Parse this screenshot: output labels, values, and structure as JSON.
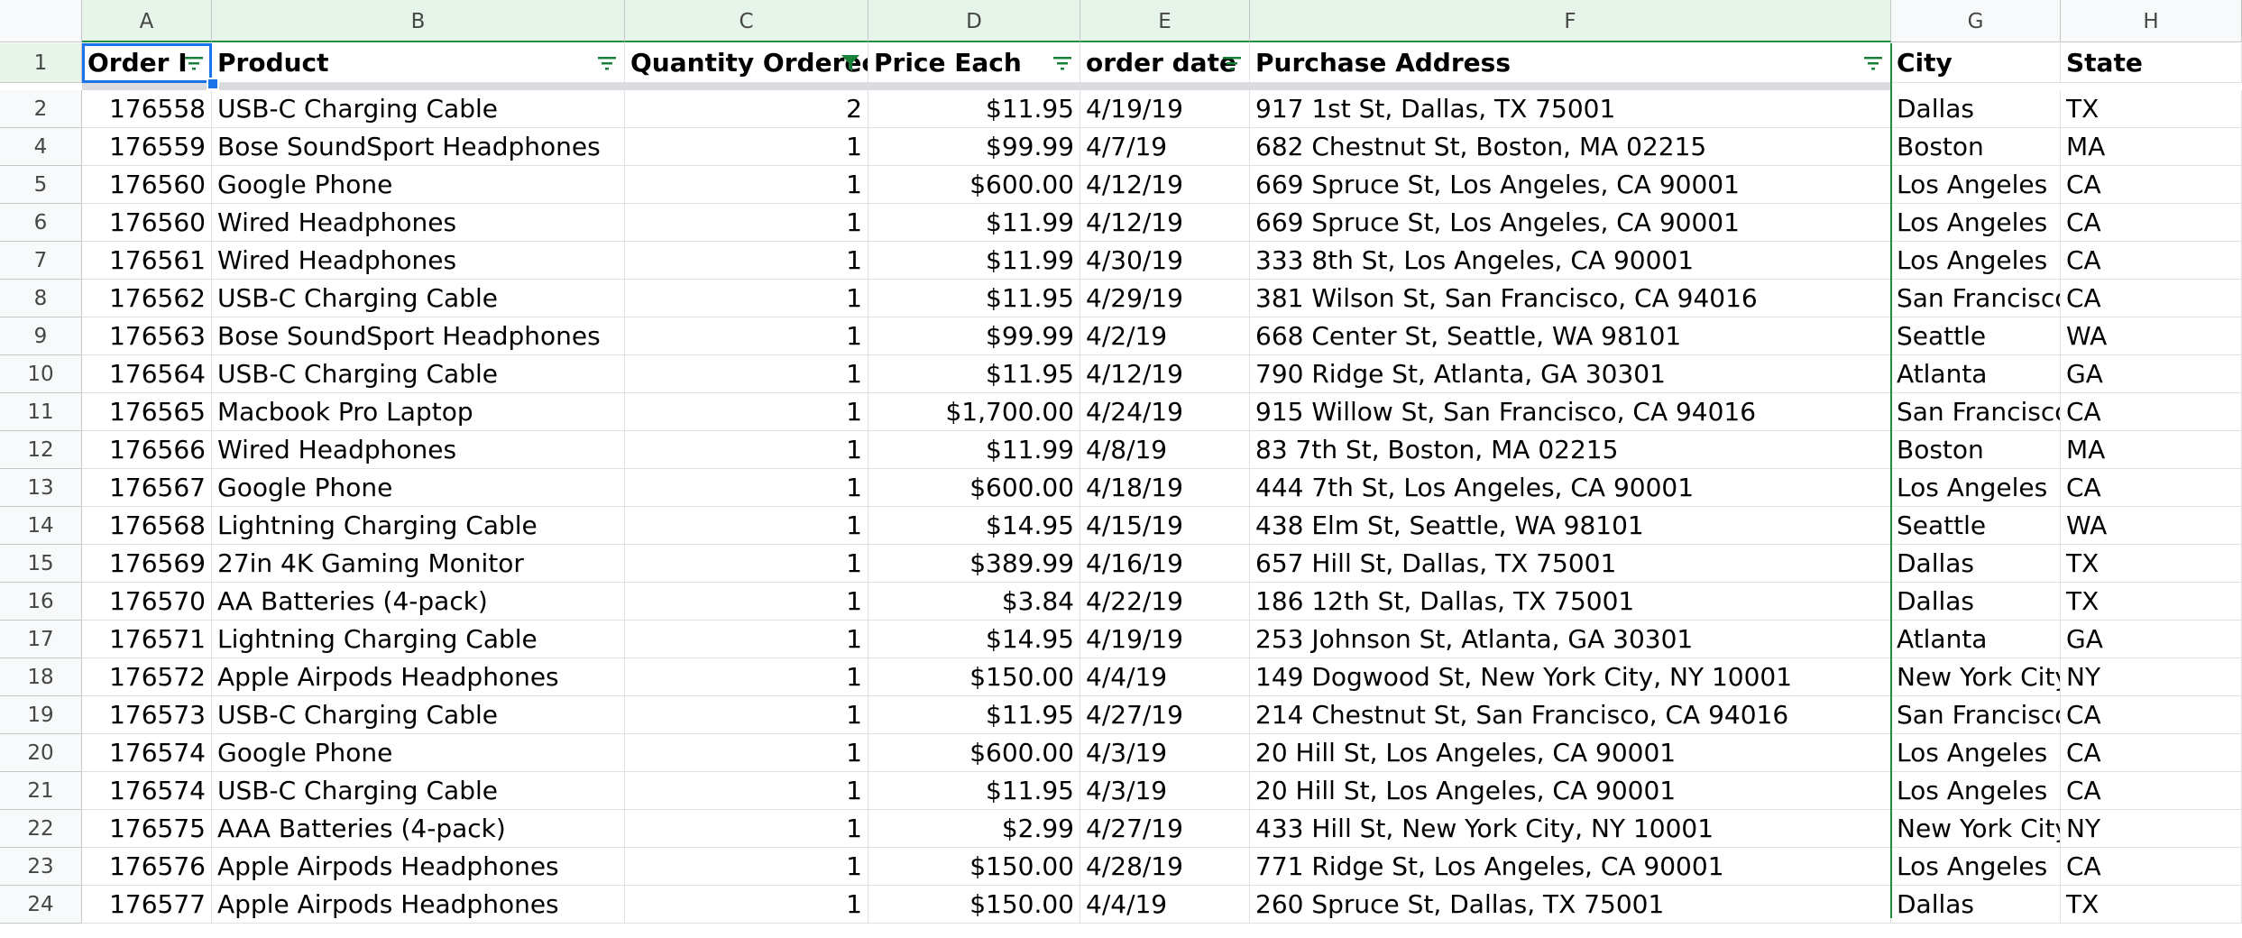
{
  "columns": [
    {
      "letter": "A",
      "filtered": true
    },
    {
      "letter": "B",
      "filtered": true
    },
    {
      "letter": "C",
      "filtered": true
    },
    {
      "letter": "D",
      "filtered": true
    },
    {
      "letter": "E",
      "filtered": true
    },
    {
      "letter": "F",
      "filtered": true
    },
    {
      "letter": "G",
      "filtered": false
    },
    {
      "letter": "H",
      "filtered": false
    }
  ],
  "header_row": {
    "row_number": "1",
    "cells": [
      "Order I",
      "Product",
      "Quantity Orderec",
      "Price Each",
      "order date",
      "Purchase Address",
      "City",
      "State"
    ],
    "filter_active": [
      false,
      false,
      true,
      false,
      false,
      false,
      false,
      false
    ]
  },
  "rows": [
    {
      "n": "2",
      "cells": [
        "176558",
        "USB-C Charging Cable",
        "2",
        "$11.95",
        "4/19/19",
        "917 1st St, Dallas, TX 75001",
        "Dallas",
        "TX"
      ]
    },
    {
      "n": "4",
      "cells": [
        "176559",
        "Bose SoundSport Headphones",
        "1",
        "$99.99",
        "4/7/19",
        "682 Chestnut St, Boston, MA 02215",
        "Boston",
        "MA"
      ]
    },
    {
      "n": "5",
      "cells": [
        "176560",
        "Google Phone",
        "1",
        "$600.00",
        "4/12/19",
        "669 Spruce St, Los Angeles, CA 90001",
        "Los Angeles",
        "CA"
      ]
    },
    {
      "n": "6",
      "cells": [
        "176560",
        "Wired Headphones",
        "1",
        "$11.99",
        "4/12/19",
        "669 Spruce St, Los Angeles, CA 90001",
        "Los Angeles",
        "CA"
      ]
    },
    {
      "n": "7",
      "cells": [
        "176561",
        "Wired Headphones",
        "1",
        "$11.99",
        "4/30/19",
        "333 8th St, Los Angeles, CA 90001",
        "Los Angeles",
        "CA"
      ]
    },
    {
      "n": "8",
      "cells": [
        "176562",
        "USB-C Charging Cable",
        "1",
        "$11.95",
        "4/29/19",
        "381 Wilson St, San Francisco, CA 94016",
        "San Francisco",
        "CA"
      ]
    },
    {
      "n": "9",
      "cells": [
        "176563",
        "Bose SoundSport Headphones",
        "1",
        "$99.99",
        "4/2/19",
        "668 Center St, Seattle, WA 98101",
        "Seattle",
        "WA"
      ]
    },
    {
      "n": "10",
      "cells": [
        "176564",
        "USB-C Charging Cable",
        "1",
        "$11.95",
        "4/12/19",
        "790 Ridge St, Atlanta, GA 30301",
        "Atlanta",
        "GA"
      ]
    },
    {
      "n": "11",
      "cells": [
        "176565",
        "Macbook Pro Laptop",
        "1",
        "$1,700.00",
        "4/24/19",
        "915 Willow St, San Francisco, CA 94016",
        "San Francisco",
        "CA"
      ]
    },
    {
      "n": "12",
      "cells": [
        "176566",
        "Wired Headphones",
        "1",
        "$11.99",
        "4/8/19",
        "83 7th St, Boston, MA 02215",
        "Boston",
        "MA"
      ]
    },
    {
      "n": "13",
      "cells": [
        "176567",
        "Google Phone",
        "1",
        "$600.00",
        "4/18/19",
        "444 7th St, Los Angeles, CA 90001",
        "Los Angeles",
        "CA"
      ]
    },
    {
      "n": "14",
      "cells": [
        "176568",
        "Lightning Charging Cable",
        "1",
        "$14.95",
        "4/15/19",
        "438 Elm St, Seattle, WA 98101",
        "Seattle",
        "WA"
      ]
    },
    {
      "n": "15",
      "cells": [
        "176569",
        "27in 4K Gaming Monitor",
        "1",
        "$389.99",
        "4/16/19",
        "657 Hill St, Dallas, TX 75001",
        "Dallas",
        "TX"
      ]
    },
    {
      "n": "16",
      "cells": [
        "176570",
        "AA Batteries (4-pack)",
        "1",
        "$3.84",
        "4/22/19",
        "186 12th St, Dallas, TX 75001",
        "Dallas",
        "TX"
      ]
    },
    {
      "n": "17",
      "cells": [
        "176571",
        "Lightning Charging Cable",
        "1",
        "$14.95",
        "4/19/19",
        "253 Johnson St, Atlanta, GA 30301",
        "Atlanta",
        "GA"
      ]
    },
    {
      "n": "18",
      "cells": [
        "176572",
        "Apple Airpods Headphones",
        "1",
        "$150.00",
        "4/4/19",
        "149 Dogwood St, New York City, NY 10001",
        "New York City",
        "NY"
      ]
    },
    {
      "n": "19",
      "cells": [
        "176573",
        "USB-C Charging Cable",
        "1",
        "$11.95",
        "4/27/19",
        "214 Chestnut St, San Francisco, CA 94016",
        "San Francisco",
        "CA"
      ]
    },
    {
      "n": "20",
      "cells": [
        "176574",
        "Google Phone",
        "1",
        "$600.00",
        "4/3/19",
        "20 Hill St, Los Angeles, CA 90001",
        "Los Angeles",
        "CA"
      ]
    },
    {
      "n": "21",
      "cells": [
        "176574",
        "USB-C Charging Cable",
        "1",
        "$11.95",
        "4/3/19",
        "20 Hill St, Los Angeles, CA 90001",
        "Los Angeles",
        "CA"
      ]
    },
    {
      "n": "22",
      "cells": [
        "176575",
        "AAA Batteries (4-pack)",
        "1",
        "$2.99",
        "4/27/19",
        "433 Hill St, New York City, NY 10001",
        "New York City",
        "NY"
      ]
    },
    {
      "n": "23",
      "cells": [
        "176576",
        "Apple Airpods Headphones",
        "1",
        "$150.00",
        "4/28/19",
        "771 Ridge St, Los Angeles, CA 90001",
        "Los Angeles",
        "CA"
      ]
    },
    {
      "n": "24",
      "cells": [
        "176577",
        "Apple Airpods Headphones",
        "1",
        "$150.00",
        "4/4/19",
        "260 Spruce St, Dallas, TX 75001",
        "Dallas",
        "TX"
      ]
    }
  ],
  "colors": {
    "filter_green": "#188038",
    "selection_blue": "#1a73e8",
    "header_bg": "#f8f9fa",
    "filter_header_bg": "#e6f4ea"
  },
  "icons": {
    "filter": "filter-lines-icon",
    "filter_active": "funnel-icon"
  }
}
